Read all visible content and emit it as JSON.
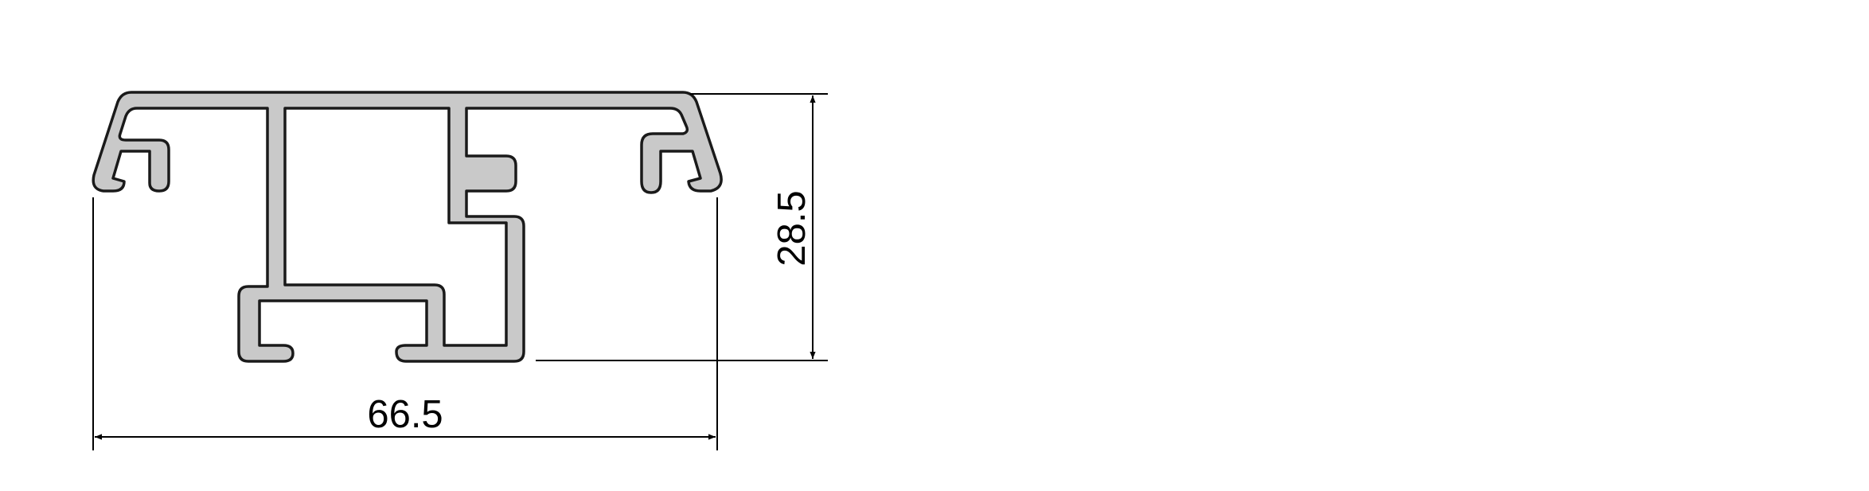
{
  "drawing": {
    "width_dimension": "66.5",
    "height_dimension": "28.5"
  },
  "colors": {
    "profile_fill": "#c9c9c9",
    "profile_stroke": "#1a1a1a",
    "dimension_line": "#000000"
  }
}
